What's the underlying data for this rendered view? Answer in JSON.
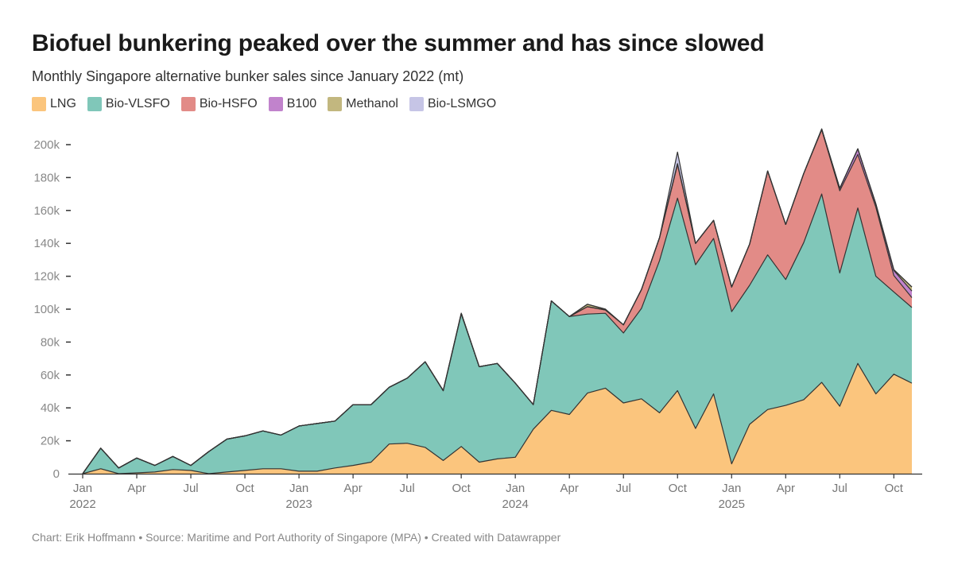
{
  "title": "Biofuel bunkering peaked over the summer and has since slowed",
  "subtitle": "Monthly Singapore alternative bunker sales since January 2022 (mt)",
  "footer": "Chart: Erik Hoffmann • Source: Maritime and Port Authority of Singapore (MPA) • Created with Datawrapper",
  "chart_data": {
    "type": "area",
    "stacked": true,
    "x_start": "2022-01",
    "ylim": [
      0,
      200000
    ],
    "yticks": [
      {
        "value": 0,
        "label": "0"
      },
      {
        "value": 20000,
        "label": "20k"
      },
      {
        "value": 40000,
        "label": "40k"
      },
      {
        "value": 60000,
        "label": "60k"
      },
      {
        "value": 80000,
        "label": "80k"
      },
      {
        "value": 100000,
        "label": "100k"
      },
      {
        "value": 120000,
        "label": "120k"
      },
      {
        "value": 140000,
        "label": "140k"
      },
      {
        "value": 160000,
        "label": "160k"
      },
      {
        "value": 180000,
        "label": "180k"
      },
      {
        "value": 200000,
        "label": "200k"
      }
    ],
    "xticks": [
      {
        "index": 0,
        "label": "Jan",
        "year": "2022"
      },
      {
        "index": 3,
        "label": "Apr",
        "year": ""
      },
      {
        "index": 6,
        "label": "Jul",
        "year": ""
      },
      {
        "index": 9,
        "label": "Oct",
        "year": ""
      },
      {
        "index": 12,
        "label": "Jan",
        "year": "2023"
      },
      {
        "index": 15,
        "label": "Apr",
        "year": ""
      },
      {
        "index": 18,
        "label": "Jul",
        "year": ""
      },
      {
        "index": 21,
        "label": "Oct",
        "year": ""
      },
      {
        "index": 24,
        "label": "Jan",
        "year": "2024"
      },
      {
        "index": 27,
        "label": "Apr",
        "year": ""
      },
      {
        "index": 30,
        "label": "Jul",
        "year": ""
      },
      {
        "index": 33,
        "label": "Oct",
        "year": ""
      },
      {
        "index": 36,
        "label": "Jan",
        "year": "2025"
      },
      {
        "index": 39,
        "label": "Apr",
        "year": ""
      },
      {
        "index": 42,
        "label": "Jul",
        "year": ""
      },
      {
        "index": 45,
        "label": "Oct",
        "year": ""
      }
    ],
    "series": [
      {
        "name": "LNG",
        "color": "#fbc57d",
        "values": [
          0,
          3000,
          0,
          500,
          1000,
          2500,
          2000,
          0,
          1000,
          2000,
          3000,
          3000,
          1500,
          1500,
          3500,
          5000,
          7000,
          18000,
          18500,
          16000,
          8000,
          16500,
          7000,
          9000,
          10000,
          27000,
          38500,
          36000,
          49000,
          52000,
          43000,
          45500,
          37000,
          50500,
          27500,
          48500,
          6000,
          30000,
          39000,
          41500,
          45000,
          55500,
          41000,
          67000,
          48500,
          60500,
          55000
        ]
      },
      {
        "name": "Bio-VLSFO",
        "color": "#80c7b9",
        "values": [
          0,
          12500,
          3500,
          9000,
          4000,
          8000,
          3000,
          13500,
          20000,
          21000,
          23000,
          20500,
          27500,
          29000,
          28500,
          37000,
          35000,
          34500,
          39500,
          52000,
          42500,
          80500,
          58000,
          58000,
          45000,
          15000,
          66500,
          59500,
          48000,
          45500,
          42500,
          55000,
          92500,
          117000,
          99500,
          94500,
          92500,
          84500,
          94000,
          76500,
          95500,
          114500,
          81000,
          94500,
          71500,
          50000,
          46000
        ]
      },
      {
        "name": "Bio-HSFO",
        "color": "#e28b87",
        "values": [
          0,
          0,
          0,
          0,
          0,
          0,
          0,
          0,
          0,
          0,
          0,
          0,
          0,
          0,
          0,
          0,
          0,
          0,
          0,
          0,
          0,
          500,
          0,
          0,
          0,
          0,
          0,
          0,
          4500,
          2000,
          5000,
          11500,
          14000,
          20500,
          13000,
          11000,
          15000,
          25000,
          51000,
          33500,
          42000,
          39000,
          50000,
          32500,
          42000,
          10000,
          6000
        ]
      },
      {
        "name": "B100",
        "color": "#c183cc",
        "values": [
          0,
          0,
          0,
          0,
          0,
          0,
          0,
          0,
          0,
          0,
          0,
          0,
          0,
          0,
          0,
          0,
          0,
          0,
          0,
          0,
          0,
          0,
          0,
          0,
          0,
          0,
          0,
          0,
          0,
          0,
          0,
          0,
          0,
          0,
          0,
          0,
          0,
          0,
          0,
          0,
          0,
          500,
          1500,
          3500,
          2000,
          3000,
          4000
        ]
      },
      {
        "name": "Methanol",
        "color": "#c2b77f",
        "values": [
          0,
          0,
          0,
          0,
          0,
          0,
          0,
          0,
          0,
          0,
          0,
          0,
          0,
          0,
          0,
          0,
          0,
          0,
          0,
          0,
          0,
          0,
          0,
          0,
          0,
          0,
          0,
          0,
          1500,
          500,
          0,
          0,
          0,
          500,
          0,
          0,
          0,
          0,
          0,
          0,
          0,
          0,
          0,
          0,
          0,
          500,
          2500
        ]
      },
      {
        "name": "Bio-LSMGO",
        "color": "#c6c5e6",
        "values": [
          0,
          0,
          0,
          0,
          0,
          0,
          0,
          0,
          0,
          0,
          0,
          0,
          0,
          0,
          0,
          0,
          0,
          0,
          0,
          0,
          0,
          0,
          0,
          0,
          0,
          0,
          0,
          0,
          0,
          0,
          0,
          0,
          0,
          7000,
          0,
          0,
          0,
          0,
          0,
          0,
          0,
          0,
          0,
          0,
          0,
          0,
          0
        ]
      }
    ]
  }
}
